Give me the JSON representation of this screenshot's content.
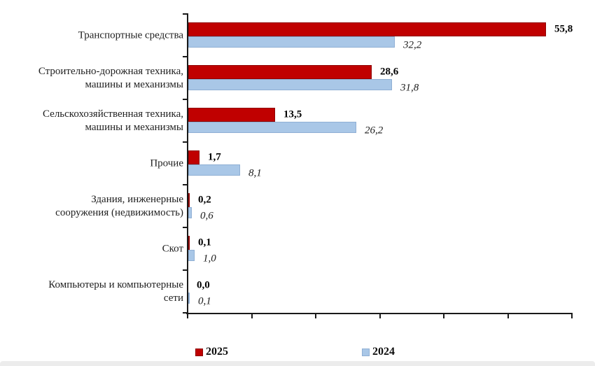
{
  "chart_data": {
    "type": "bar",
    "orientation": "horizontal",
    "title": "",
    "xlabel": "",
    "ylabel": "",
    "xlim": [
      0,
      60
    ],
    "x_tick_step": 10,
    "grid": false,
    "legend_position": "bottom",
    "axis_color": "#1a1a1a",
    "categories": [
      {
        "lines": [
          "Транспортные средства"
        ]
      },
      {
        "lines": [
          "Строительно-дорожная техника,",
          "машины и механизмы"
        ]
      },
      {
        "lines": [
          "Сельскохозяйственная техника,",
          "машины и механизмы"
        ]
      },
      {
        "lines": [
          "Прочие"
        ]
      },
      {
        "lines": [
          "Здания, инженерные",
          "сооружения (недвижимость)"
        ]
      },
      {
        "lines": [
          "Скот"
        ]
      },
      {
        "lines": [
          "Компьютеры и компьютерные",
          "сети"
        ]
      }
    ],
    "series": [
      {
        "name": "2025",
        "color": "#c00000",
        "border_color": "#8f0000",
        "label_style": "bold",
        "values": [
          55.8,
          28.6,
          13.5,
          1.7,
          0.2,
          0.1,
          0.0
        ],
        "value_labels": [
          "55,8",
          "28,6",
          "13,5",
          "1,7",
          "0,2",
          "0,1",
          "0,0"
        ]
      },
      {
        "name": "2024",
        "color": "#a9c7e7",
        "border_color": "#8fafd4",
        "label_style": "italic",
        "values": [
          32.2,
          31.8,
          26.2,
          8.1,
          0.6,
          1.0,
          0.1
        ],
        "value_labels": [
          "32,2",
          "31,8",
          "26,2",
          "8,1",
          "0,6",
          "1,0",
          "0,1"
        ]
      }
    ],
    "legend": {
      "items": [
        {
          "label": "2025",
          "color": "#c00000",
          "border_color": "#8f0000"
        },
        {
          "label": "2024",
          "color": "#a9c7e7",
          "border_color": "#8fafd4"
        }
      ]
    }
  }
}
